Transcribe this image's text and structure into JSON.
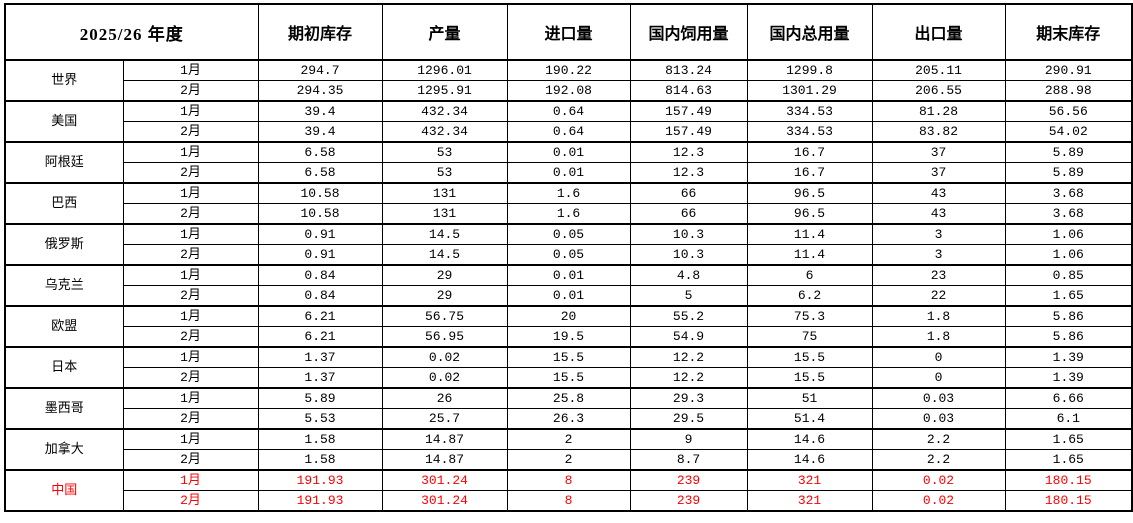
{
  "table": {
    "year_header": "2025/26 年度",
    "columns": [
      "期初库存",
      "产量",
      "进口量",
      "国内饲用量",
      "国内总用量",
      "出口量",
      "期末库存"
    ],
    "highlight_color": "#ff0000",
    "groups": [
      {
        "country": "世界",
        "highlight": false,
        "rows": [
          {
            "month": "1月",
            "values": [
              "294.7",
              "1296.01",
              "190.22",
              "813.24",
              "1299.8",
              "205.11",
              "290.91"
            ]
          },
          {
            "month": "2月",
            "values": [
              "294.35",
              "1295.91",
              "192.08",
              "814.63",
              "1301.29",
              "206.55",
              "288.98"
            ]
          }
        ]
      },
      {
        "country": "美国",
        "highlight": false,
        "rows": [
          {
            "month": "1月",
            "values": [
              "39.4",
              "432.34",
              "0.64",
              "157.49",
              "334.53",
              "81.28",
              "56.56"
            ]
          },
          {
            "month": "2月",
            "values": [
              "39.4",
              "432.34",
              "0.64",
              "157.49",
              "334.53",
              "83.82",
              "54.02"
            ]
          }
        ]
      },
      {
        "country": "阿根廷",
        "highlight": false,
        "rows": [
          {
            "month": "1月",
            "values": [
              "6.58",
              "53",
              "0.01",
              "12.3",
              "16.7",
              "37",
              "5.89"
            ]
          },
          {
            "month": "2月",
            "values": [
              "6.58",
              "53",
              "0.01",
              "12.3",
              "16.7",
              "37",
              "5.89"
            ]
          }
        ]
      },
      {
        "country": "巴西",
        "highlight": false,
        "rows": [
          {
            "month": "1月",
            "values": [
              "10.58",
              "131",
              "1.6",
              "66",
              "96.5",
              "43",
              "3.68"
            ]
          },
          {
            "month": "2月",
            "values": [
              "10.58",
              "131",
              "1.6",
              "66",
              "96.5",
              "43",
              "3.68"
            ]
          }
        ]
      },
      {
        "country": "俄罗斯",
        "highlight": false,
        "rows": [
          {
            "month": "1月",
            "values": [
              "0.91",
              "14.5",
              "0.05",
              "10.3",
              "11.4",
              "3",
              "1.06"
            ]
          },
          {
            "month": "2月",
            "values": [
              "0.91",
              "14.5",
              "0.05",
              "10.3",
              "11.4",
              "3",
              "1.06"
            ]
          }
        ]
      },
      {
        "country": "乌克兰",
        "highlight": false,
        "rows": [
          {
            "month": "1月",
            "values": [
              "0.84",
              "29",
              "0.01",
              "4.8",
              "6",
              "23",
              "0.85"
            ]
          },
          {
            "month": "2月",
            "values": [
              "0.84",
              "29",
              "0.01",
              "5",
              "6.2",
              "22",
              "1.65"
            ]
          }
        ]
      },
      {
        "country": "欧盟",
        "highlight": false,
        "rows": [
          {
            "month": "1月",
            "values": [
              "6.21",
              "56.75",
              "20",
              "55.2",
              "75.3",
              "1.8",
              "5.86"
            ]
          },
          {
            "month": "2月",
            "values": [
              "6.21",
              "56.95",
              "19.5",
              "54.9",
              "75",
              "1.8",
              "5.86"
            ]
          }
        ]
      },
      {
        "country": "日本",
        "highlight": false,
        "rows": [
          {
            "month": "1月",
            "values": [
              "1.37",
              "0.02",
              "15.5",
              "12.2",
              "15.5",
              "0",
              "1.39"
            ]
          },
          {
            "month": "2月",
            "values": [
              "1.37",
              "0.02",
              "15.5",
              "12.2",
              "15.5",
              "0",
              "1.39"
            ]
          }
        ]
      },
      {
        "country": "墨西哥",
        "highlight": false,
        "rows": [
          {
            "month": "1月",
            "values": [
              "5.89",
              "26",
              "25.8",
              "29.3",
              "51",
              "0.03",
              "6.66"
            ]
          },
          {
            "month": "2月",
            "values": [
              "5.53",
              "25.7",
              "26.3",
              "29.5",
              "51.4",
              "0.03",
              "6.1"
            ]
          }
        ]
      },
      {
        "country": "加拿大",
        "highlight": false,
        "rows": [
          {
            "month": "1月",
            "values": [
              "1.58",
              "14.87",
              "2",
              "9",
              "14.6",
              "2.2",
              "1.65"
            ]
          },
          {
            "month": "2月",
            "values": [
              "1.58",
              "14.87",
              "2",
              "8.7",
              "14.6",
              "2.2",
              "1.65"
            ]
          }
        ]
      },
      {
        "country": "中国",
        "highlight": true,
        "rows": [
          {
            "month": "1月",
            "values": [
              "191.93",
              "301.24",
              "8",
              "239",
              "321",
              "0.02",
              "180.15"
            ]
          },
          {
            "month": "2月",
            "values": [
              "191.93",
              "301.24",
              "8",
              "239",
              "321",
              "0.02",
              "180.15"
            ]
          }
        ]
      }
    ]
  }
}
